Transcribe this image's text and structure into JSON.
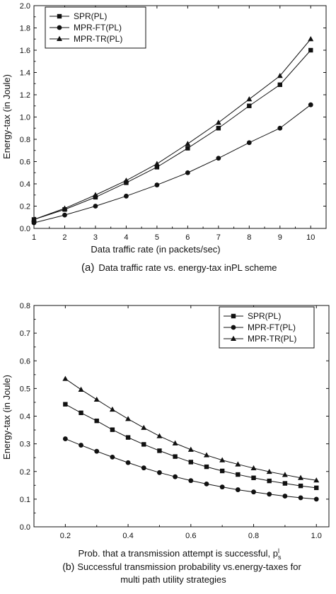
{
  "chart_data": [
    {
      "type": "line",
      "xlabel": "Data traffic rate (in packets/sec)",
      "ylabel": "Energy-tax (in Joule)",
      "caption_prefix": "(a)",
      "caption": "Data traffic rate vs. energy-tax inPL scheme",
      "xlim": [
        1,
        10.5
      ],
      "ylim": [
        0.0,
        2.0
      ],
      "x_ticks": [
        1,
        2,
        3,
        4,
        5,
        6,
        7,
        8,
        9,
        10
      ],
      "y_ticks": [
        0.0,
        0.2,
        0.4,
        0.6,
        0.8,
        1.0,
        1.2,
        1.4,
        1.6,
        1.8,
        2.0
      ],
      "y_tick_labels": [
        "0.0",
        "0.2",
        "0.4",
        "0.6",
        "0.8",
        "1.0",
        "1.2",
        "1.4",
        "1.6",
        "1.8",
        "2.0"
      ],
      "x": [
        1,
        2,
        3,
        4,
        5,
        6,
        7,
        8,
        9,
        10
      ],
      "legend_position": "top-left",
      "series": [
        {
          "name": "SPR(PL)",
          "marker": "square",
          "values": [
            0.08,
            0.17,
            0.28,
            0.41,
            0.55,
            0.72,
            0.9,
            1.1,
            1.29,
            1.6
          ]
        },
        {
          "name": "MPR-FT(PL)",
          "marker": "circle",
          "values": [
            0.05,
            0.12,
            0.2,
            0.29,
            0.39,
            0.5,
            0.63,
            0.77,
            0.9,
            1.11
          ]
        },
        {
          "name": "MPR-TR(PL)",
          "marker": "triangle",
          "values": [
            0.08,
            0.18,
            0.3,
            0.43,
            0.58,
            0.76,
            0.95,
            1.16,
            1.37,
            1.7
          ]
        }
      ]
    },
    {
      "type": "line",
      "xlabel": "Prob. that a transmission attempt is successful, p",
      "xlabel_sup": "l",
      "xlabel_sub": "s",
      "ylabel": "Energy-tax (in Joule)",
      "caption_prefix": "(b)",
      "caption_lines": [
        "Successful transmission probability vs.energy-taxes for",
        "multi path utility strategies"
      ],
      "xlim": [
        0.1,
        1.04
      ],
      "ylim": [
        0.0,
        0.8
      ],
      "x_ticks": [
        0.2,
        0.4,
        0.6,
        0.8,
        1.0
      ],
      "x_tick_labels": [
        "0.2",
        "0.4",
        "0.6",
        "0.8",
        "1.0"
      ],
      "y_ticks": [
        0.0,
        0.1,
        0.2,
        0.3,
        0.4,
        0.5,
        0.6,
        0.7,
        0.8
      ],
      "y_tick_labels": [
        "0.0",
        "0.1",
        "0.2",
        "0.3",
        "0.4",
        "0.5",
        "0.6",
        "0.7",
        "0.8"
      ],
      "x": [
        0.2,
        0.25,
        0.3,
        0.35,
        0.4,
        0.45,
        0.5,
        0.55,
        0.6,
        0.65,
        0.7,
        0.75,
        0.8,
        0.85,
        0.9,
        0.95,
        1.0
      ],
      "legend_position": "top-right",
      "series": [
        {
          "name": "SPR(PL)",
          "marker": "square",
          "values": [
            0.443,
            0.412,
            0.383,
            0.351,
            0.323,
            0.298,
            0.275,
            0.254,
            0.234,
            0.217,
            0.202,
            0.189,
            0.177,
            0.166,
            0.157,
            0.148,
            0.141
          ]
        },
        {
          "name": "MPR-FT(PL)",
          "marker": "circle",
          "values": [
            0.318,
            0.295,
            0.273,
            0.252,
            0.232,
            0.213,
            0.196,
            0.181,
            0.167,
            0.155,
            0.144,
            0.134,
            0.126,
            0.118,
            0.111,
            0.105,
            0.1
          ]
        },
        {
          "name": "MPR-TR(PL)",
          "marker": "triangle",
          "values": [
            0.535,
            0.496,
            0.46,
            0.424,
            0.39,
            0.358,
            0.328,
            0.302,
            0.279,
            0.259,
            0.241,
            0.226,
            0.212,
            0.199,
            0.188,
            0.177,
            0.168
          ]
        }
      ]
    }
  ]
}
